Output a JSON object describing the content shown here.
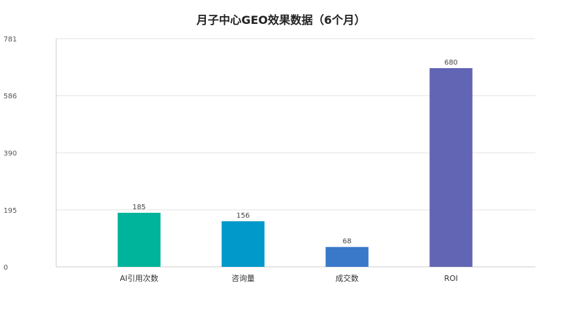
{
  "chart_data": {
    "type": "bar",
    "title": "月子中心GEO效果数据（6个月）",
    "categories": [
      "AI引用次数",
      "咨询量",
      "成交数",
      "ROI"
    ],
    "values": [
      185,
      156,
      68,
      680
    ],
    "colors": [
      "#00b39b",
      "#0099c9",
      "#3a78c9",
      "#6264b4"
    ],
    "ylim": [
      0,
      781
    ],
    "yticks": [
      0,
      195,
      390,
      586,
      781
    ],
    "grid": true,
    "legend": "none",
    "xlabel": "",
    "ylabel": ""
  }
}
